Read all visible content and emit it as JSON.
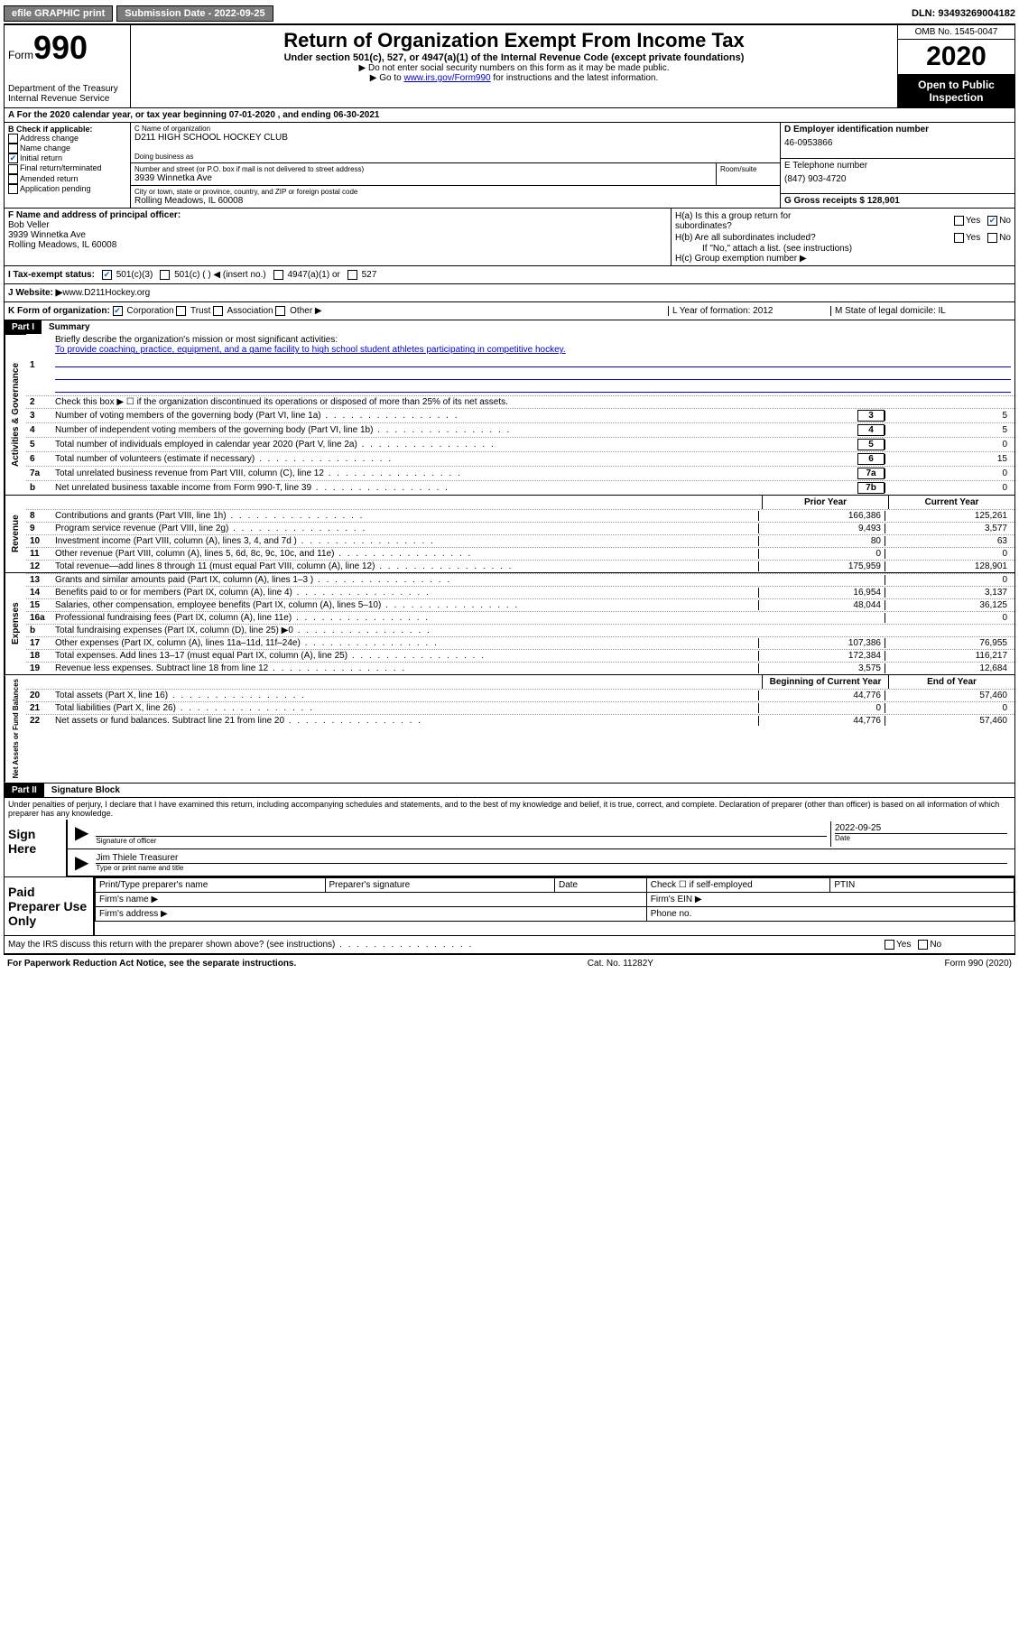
{
  "topbar": {
    "efile": "efile GRAPHIC print",
    "submission_label": "Submission Date - 2022-09-25",
    "dln": "DLN: 93493269004182"
  },
  "header": {
    "form_prefix": "Form",
    "form_number": "990",
    "dept": "Department of the Treasury",
    "irs": "Internal Revenue Service",
    "title": "Return of Organization Exempt From Income Tax",
    "sub": "Under section 501(c), 527, or 4947(a)(1) of the Internal Revenue Code (except private foundations)",
    "note1": "▶ Do not enter social security numbers on this form as it may be made public.",
    "note2_pre": "▶ Go to ",
    "note2_link": "www.irs.gov/Form990",
    "note2_post": " for instructions and the latest information.",
    "omb": "OMB No. 1545-0047",
    "year": "2020",
    "inspection": "Open to Public Inspection"
  },
  "period": "For the 2020 calendar year, or tax year beginning 07-01-2020    , and ending 06-30-2021",
  "sectionB": {
    "label": "B Check if applicable:",
    "opts": [
      "Address change",
      "Name change",
      "Initial return",
      "Final return/terminated",
      "Amended return",
      "Application pending"
    ],
    "checked_idx": 2
  },
  "sectionC": {
    "name_label": "C Name of organization",
    "name": "D211 HIGH SCHOOL HOCKEY CLUB",
    "dba_label": "Doing business as",
    "street_label": "Number and street (or P.O. box if mail is not delivered to street address)",
    "room_label": "Room/suite",
    "street": "3939 Winnetka Ave",
    "city_label": "City or town, state or province, country, and ZIP or foreign postal code",
    "city": "Rolling Meadows, IL  60008"
  },
  "sectionD": {
    "ein_label": "D Employer identification number",
    "ein": "46-0953866",
    "tel_label": "E Telephone number",
    "tel": "(847) 903-4720",
    "gross_label": "G Gross receipts $ 128,901"
  },
  "sectionF": {
    "label": "F  Name and address of principal officer:",
    "name": "Bob Veller",
    "addr1": "3939 Winnetka Ave",
    "addr2": "Rolling Meadows, IL  60008"
  },
  "sectionH": {
    "ha": "H(a)  Is this a group return for",
    "ha2": "subordinates?",
    "hb": "H(b)  Are all subordinates included?",
    "hb_note": "If \"No,\" attach a list. (see instructions)",
    "hc": "H(c)  Group exemption number ▶"
  },
  "sectionI": {
    "label": "I   Tax-exempt status:",
    "opts": [
      "501(c)(3)",
      "501(c) (  ) ◀ (insert no.)",
      "4947(a)(1) or",
      "527"
    ]
  },
  "sectionJ": {
    "label": "J   Website: ▶  ",
    "url": "www.D211Hockey.org"
  },
  "sectionK": {
    "label": "K Form of organization:",
    "opts": [
      "Corporation",
      "Trust",
      "Association",
      "Other ▶"
    ],
    "year_label": "L Year of formation: 2012",
    "state_label": "M State of legal domicile: IL"
  },
  "part1": {
    "header": "Part I",
    "title": "Summary",
    "mission_label": "Briefly describe the organization's mission or most significant activities:",
    "mission": "To provide coaching, practice, equipment, and a game facility to high school student athletes participating in competitive hockey.",
    "line2": "Check this box ▶ ☐  if the organization discontinued its operations or disposed of more than 25% of its net assets.",
    "vtabs": [
      "Activities & Governance",
      "Revenue",
      "Expenses",
      "Net Assets or Fund Balances"
    ],
    "gov_lines": [
      {
        "n": "3",
        "t": "Number of voting members of the governing body (Part VI, line 1a)",
        "box": "3",
        "v": "5"
      },
      {
        "n": "4",
        "t": "Number of independent voting members of the governing body (Part VI, line 1b)",
        "box": "4",
        "v": "5"
      },
      {
        "n": "5",
        "t": "Total number of individuals employed in calendar year 2020 (Part V, line 2a)",
        "box": "5",
        "v": "0"
      },
      {
        "n": "6",
        "t": "Total number of volunteers (estimate if necessary)",
        "box": "6",
        "v": "15"
      },
      {
        "n": "7a",
        "t": "Total unrelated business revenue from Part VIII, column (C), line 12",
        "box": "7a",
        "v": "0"
      },
      {
        "n": "b",
        "t": "Net unrelated business taxable income from Form 990-T, line 39",
        "box": "7b",
        "v": "0"
      }
    ],
    "col_headers": {
      "prior": "Prior Year",
      "current": "Current Year",
      "begin": "Beginning of Current Year",
      "end": "End of Year"
    },
    "rev_lines": [
      {
        "n": "8",
        "t": "Contributions and grants (Part VIII, line 1h)",
        "p": "166,386",
        "c": "125,261"
      },
      {
        "n": "9",
        "t": "Program service revenue (Part VIII, line 2g)",
        "p": "9,493",
        "c": "3,577"
      },
      {
        "n": "10",
        "t": "Investment income (Part VIII, column (A), lines 3, 4, and 7d )",
        "p": "80",
        "c": "63"
      },
      {
        "n": "11",
        "t": "Other revenue (Part VIII, column (A), lines 5, 6d, 8c, 9c, 10c, and 11e)",
        "p": "0",
        "c": "0"
      },
      {
        "n": "12",
        "t": "Total revenue—add lines 8 through 11 (must equal Part VIII, column (A), line 12)",
        "p": "175,959",
        "c": "128,901"
      }
    ],
    "exp_lines": [
      {
        "n": "13",
        "t": "Grants and similar amounts paid (Part IX, column (A), lines 1–3 )",
        "p": "",
        "c": "0"
      },
      {
        "n": "14",
        "t": "Benefits paid to or for members (Part IX, column (A), line 4)",
        "p": "16,954",
        "c": "3,137"
      },
      {
        "n": "15",
        "t": "Salaries, other compensation, employee benefits (Part IX, column (A), lines 5–10)",
        "p": "48,044",
        "c": "36,125"
      },
      {
        "n": "16a",
        "t": "Professional fundraising fees (Part IX, column (A), line 11e)",
        "p": "",
        "c": "0"
      },
      {
        "n": "b",
        "t": "Total fundraising expenses (Part IX, column (D), line 25) ▶0",
        "p": "SHADED",
        "c": "SHADED"
      },
      {
        "n": "17",
        "t": "Other expenses (Part IX, column (A), lines 11a–11d, 11f–24e)",
        "p": "107,386",
        "c": "76,955"
      },
      {
        "n": "18",
        "t": "Total expenses. Add lines 13–17 (must equal Part IX, column (A), line 25)",
        "p": "172,384",
        "c": "116,217"
      },
      {
        "n": "19",
        "t": "Revenue less expenses. Subtract line 18 from line 12",
        "p": "3,575",
        "c": "12,684"
      }
    ],
    "net_lines": [
      {
        "n": "20",
        "t": "Total assets (Part X, line 16)",
        "p": "44,776",
        "c": "57,460"
      },
      {
        "n": "21",
        "t": "Total liabilities (Part X, line 26)",
        "p": "0",
        "c": "0"
      },
      {
        "n": "22",
        "t": "Net assets or fund balances. Subtract line 21 from line 20",
        "p": "44,776",
        "c": "57,460"
      }
    ]
  },
  "part2": {
    "header": "Part II",
    "title": "Signature Block",
    "penalties": "Under penalties of perjury, I declare that I have examined this return, including accompanying schedules and statements, and to the best of my knowledge and belief, it is true, correct, and complete. Declaration of preparer (other than officer) is based on all information of which preparer has any knowledge.",
    "sign_here": "Sign Here",
    "sig_officer": "Signature of officer",
    "sig_date": "2022-09-25",
    "date_label": "Date",
    "officer_name": "Jim Thiele  Treasurer",
    "type_label": "Type or print name and title",
    "paid": "Paid Preparer Use Only",
    "prep_name": "Print/Type preparer's name",
    "prep_sig": "Preparer's signature",
    "prep_date": "Date",
    "prep_check": "Check ☐ if self-employed",
    "ptin": "PTIN",
    "firm_name": "Firm's name    ▶",
    "firm_ein": "Firm's EIN ▶",
    "firm_addr": "Firm's address ▶",
    "phone": "Phone no.",
    "may_discuss": "May the IRS discuss this return with the preparer shown above? (see instructions)"
  },
  "footer": {
    "paperwork": "For Paperwork Reduction Act Notice, see the separate instructions.",
    "catno": "Cat. No. 11282Y",
    "formno": "Form 990 (2020)"
  }
}
